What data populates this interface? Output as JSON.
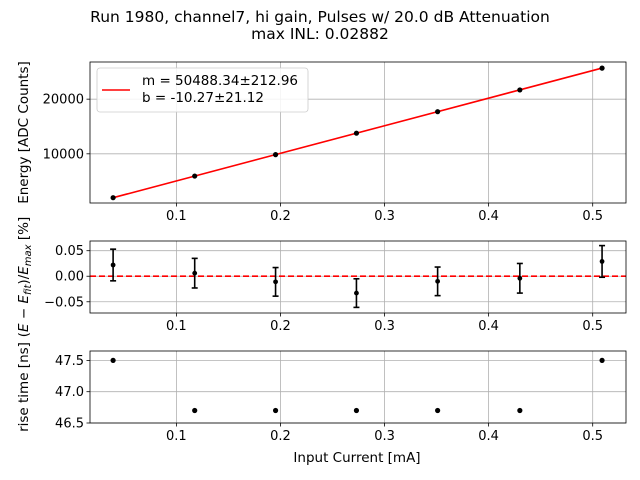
{
  "figure": {
    "title_line1": "Run 1980, channel7, hi gain, Pulses w/ 20.0 dB Attenuation",
    "title_line2": "max INL: 0.02882"
  },
  "chart_data": [
    {
      "type": "scatter",
      "id": "energy",
      "title": "",
      "xlabel": "",
      "ylabel": "Energy [ADC Counts]",
      "xlim": [
        0.017,
        0.532
      ],
      "ylim": [
        1000,
        26800
      ],
      "xticks": [
        0.1,
        0.2,
        0.3,
        0.4,
        0.5
      ],
      "xtick_labels": [
        "0.1",
        "0.2",
        "0.3",
        "0.4",
        "0.5"
      ],
      "yticks": [
        10000,
        20000
      ],
      "ytick_labels": [
        "10000",
        "20000"
      ],
      "grid": true,
      "legend_placement": "top-left",
      "series": [
        {
          "name": "m = 50488.34±212.96\nb = -10.27±21.12",
          "kind": "fit-line",
          "color": "#ff0000",
          "slope": 50488.34,
          "intercept": -10.27
        },
        {
          "kind": "points",
          "color": "#000000",
          "x": [
            0.0392,
            0.1176,
            0.1953,
            0.273,
            0.351,
            0.43,
            0.509
          ],
          "y": [
            1970,
            5930,
            9850,
            13770,
            17710,
            21690,
            25680
          ]
        }
      ],
      "legend_lines": [
        "m = 50488.34±212.96",
        "b = -10.27±21.12"
      ]
    },
    {
      "type": "scatter",
      "id": "residual",
      "title": "",
      "xlabel": "",
      "ylabel": "(E − E_fit)/E_max [%]",
      "xlim": [
        0.017,
        0.532
      ],
      "ylim": [
        -0.072,
        0.069
      ],
      "xticks": [
        0.1,
        0.2,
        0.3,
        0.4,
        0.5
      ],
      "xtick_labels": [
        "0.1",
        "0.2",
        "0.3",
        "0.4",
        "0.5"
      ],
      "yticks": [
        -0.05,
        0.0,
        0.05
      ],
      "ytick_labels": [
        "−0.05",
        "0.00",
        "0.05"
      ],
      "grid": true,
      "reference_line": {
        "y": 0,
        "color": "#ff0000",
        "style": "dashed"
      },
      "series": [
        {
          "kind": "errorbar",
          "color": "#000000",
          "x": [
            0.0392,
            0.1176,
            0.1953,
            0.273,
            0.351,
            0.43,
            0.509
          ],
          "y": [
            0.022,
            0.006,
            -0.011,
            -0.033,
            -0.01,
            -0.004,
            0.029
          ],
          "err": [
            0.031,
            0.029,
            0.028,
            0.028,
            0.028,
            0.029,
            0.031
          ]
        }
      ]
    },
    {
      "type": "scatter",
      "id": "risetime",
      "title": "",
      "xlabel": "Input Current [mA]",
      "ylabel": "rise time [ns]",
      "xlim": [
        0.017,
        0.532
      ],
      "ylim": [
        46.5,
        47.65
      ],
      "xticks": [
        0.1,
        0.2,
        0.3,
        0.4,
        0.5
      ],
      "xtick_labels": [
        "0.1",
        "0.2",
        "0.3",
        "0.4",
        "0.5"
      ],
      "yticks": [
        46.5,
        47.0,
        47.5
      ],
      "ytick_labels": [
        "46.5",
        "47.0",
        "47.5"
      ],
      "grid": true,
      "series": [
        {
          "kind": "points",
          "color": "#000000",
          "x": [
            0.0392,
            0.1176,
            0.1953,
            0.273,
            0.351,
            0.43,
            0.509
          ],
          "y": [
            47.5,
            46.7,
            46.7,
            46.7,
            46.7,
            46.7,
            47.5
          ]
        }
      ]
    }
  ]
}
